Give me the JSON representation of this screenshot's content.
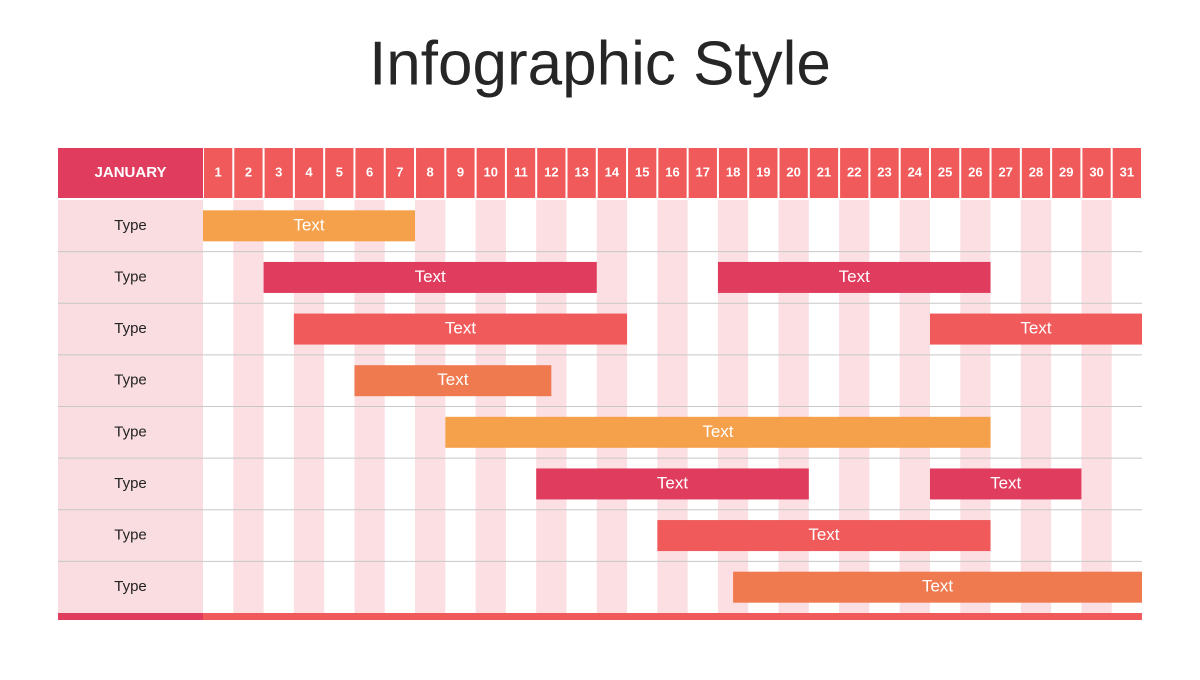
{
  "chart_data": {
    "type": "gantt",
    "title": "Infographic Style",
    "header": "JANUARY",
    "categories": [
      "1",
      "2",
      "3",
      "4",
      "5",
      "6",
      "7",
      "8",
      "9",
      "10",
      "11",
      "12",
      "13",
      "14",
      "15",
      "16",
      "17",
      "18",
      "19",
      "20",
      "21",
      "22",
      "23",
      "24",
      "25",
      "26",
      "27",
      "28",
      "29",
      "30",
      "31"
    ],
    "xlim": [
      0,
      31
    ],
    "rows": [
      {
        "label": "Type",
        "tasks": [
          {
            "text": "Text",
            "start": 0,
            "end": 7,
            "color": "#f5a04a"
          }
        ]
      },
      {
        "label": "Type",
        "tasks": [
          {
            "text": "Text",
            "start": 2,
            "end": 13,
            "color": "#e03c5e"
          },
          {
            "text": "Text",
            "start": 17,
            "end": 26,
            "color": "#e03c5e"
          }
        ]
      },
      {
        "label": "Type",
        "tasks": [
          {
            "text": "Text",
            "start": 3,
            "end": 14,
            "color": "#f05a5a"
          },
          {
            "text": "Text",
            "start": 24,
            "end": 31,
            "color": "#f05a5a"
          }
        ]
      },
      {
        "label": "Type",
        "tasks": [
          {
            "text": "Text",
            "start": 5,
            "end": 11.5,
            "color": "#f07a50"
          }
        ]
      },
      {
        "label": "Type",
        "tasks": [
          {
            "text": "Text",
            "start": 8,
            "end": 26,
            "color": "#f5a04a"
          }
        ]
      },
      {
        "label": "Type",
        "tasks": [
          {
            "text": "Text",
            "start": 11,
            "end": 20,
            "color": "#e03c5e"
          },
          {
            "text": "Text",
            "start": 24,
            "end": 29,
            "color": "#e03c5e"
          }
        ]
      },
      {
        "label": "Type",
        "tasks": [
          {
            "text": "Text",
            "start": 15,
            "end": 26,
            "color": "#f05a5a"
          }
        ]
      },
      {
        "label": "Type",
        "tasks": [
          {
            "text": "Text",
            "start": 17.5,
            "end": 31,
            "color": "#f07a50"
          }
        ]
      }
    ]
  }
}
